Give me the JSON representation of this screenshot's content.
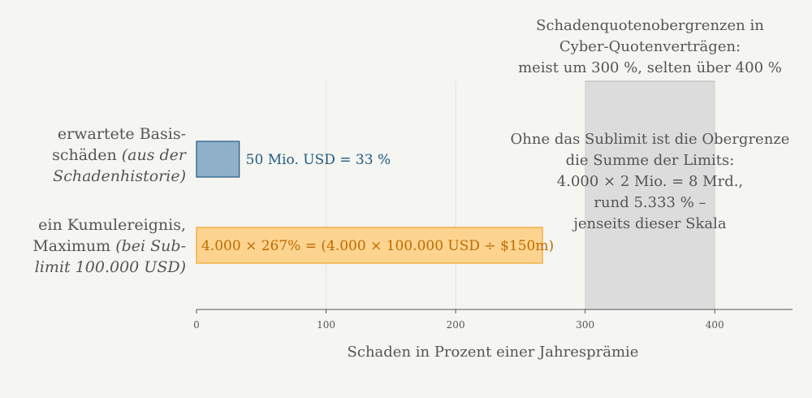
{
  "chart_data": {
    "type": "bar",
    "orientation": "horizontal",
    "xlabel": "Schaden in Prozent einer Jahresprämie",
    "xlim": [
      0,
      460
    ],
    "xticks": [
      "0",
      "100",
      "200",
      "300",
      "400"
    ],
    "xtick_values": [
      0,
      100,
      200,
      300,
      400
    ],
    "grid": true,
    "bars": [
      {
        "category_lines": [
          [
            {
              "text": "erwartete Basis-",
              "italic": false
            }
          ],
          [
            {
              "text": "schäden ",
              "italic": false
            },
            {
              "text": "(aus der",
              "italic": true
            }
          ],
          [
            {
              "text": "Schadenhistorie)",
              "italic": true
            }
          ]
        ],
        "value": 33,
        "label": "50 Mio. USD = 33 %",
        "fill": "#8fb0c8",
        "stroke": "#1f5a85",
        "label_color": "#1f5a85",
        "label_position": "outside"
      },
      {
        "category_lines": [
          [
            {
              "text": "ein Kumulereignis,",
              "italic": false
            }
          ],
          [
            {
              "text": "Maximum ",
              "italic": false
            },
            {
              "text": "(bei Sub-",
              "italic": true
            }
          ],
          [
            {
              "text": "limit 100.000 USD)",
              "italic": true
            }
          ]
        ],
        "value": 267,
        "label": "4.000 × 267% = (4.000 × 100.000 USD ÷ $150m)",
        "fill": "#fdd48f",
        "stroke": "#f0a22a",
        "label_color": "#c06a00",
        "label_position": "inside"
      }
    ],
    "band": {
      "from": 300,
      "to": 400,
      "fill": "#dcdcdc",
      "title_lines": [
        "Schadenquotenobergrenzen in",
        "Cyber-Quotenverträgen:",
        "meist um 300 %, selten über 400 %"
      ],
      "note_lines": [
        "Ohne das Sublimit ist die Obergrenze",
        "die Summe der Limits:",
        "4.000 × 2 Mio. = 8 Mrd.,",
        "rund 5.333 % –",
        "jenseits dieser Skala"
      ]
    }
  }
}
